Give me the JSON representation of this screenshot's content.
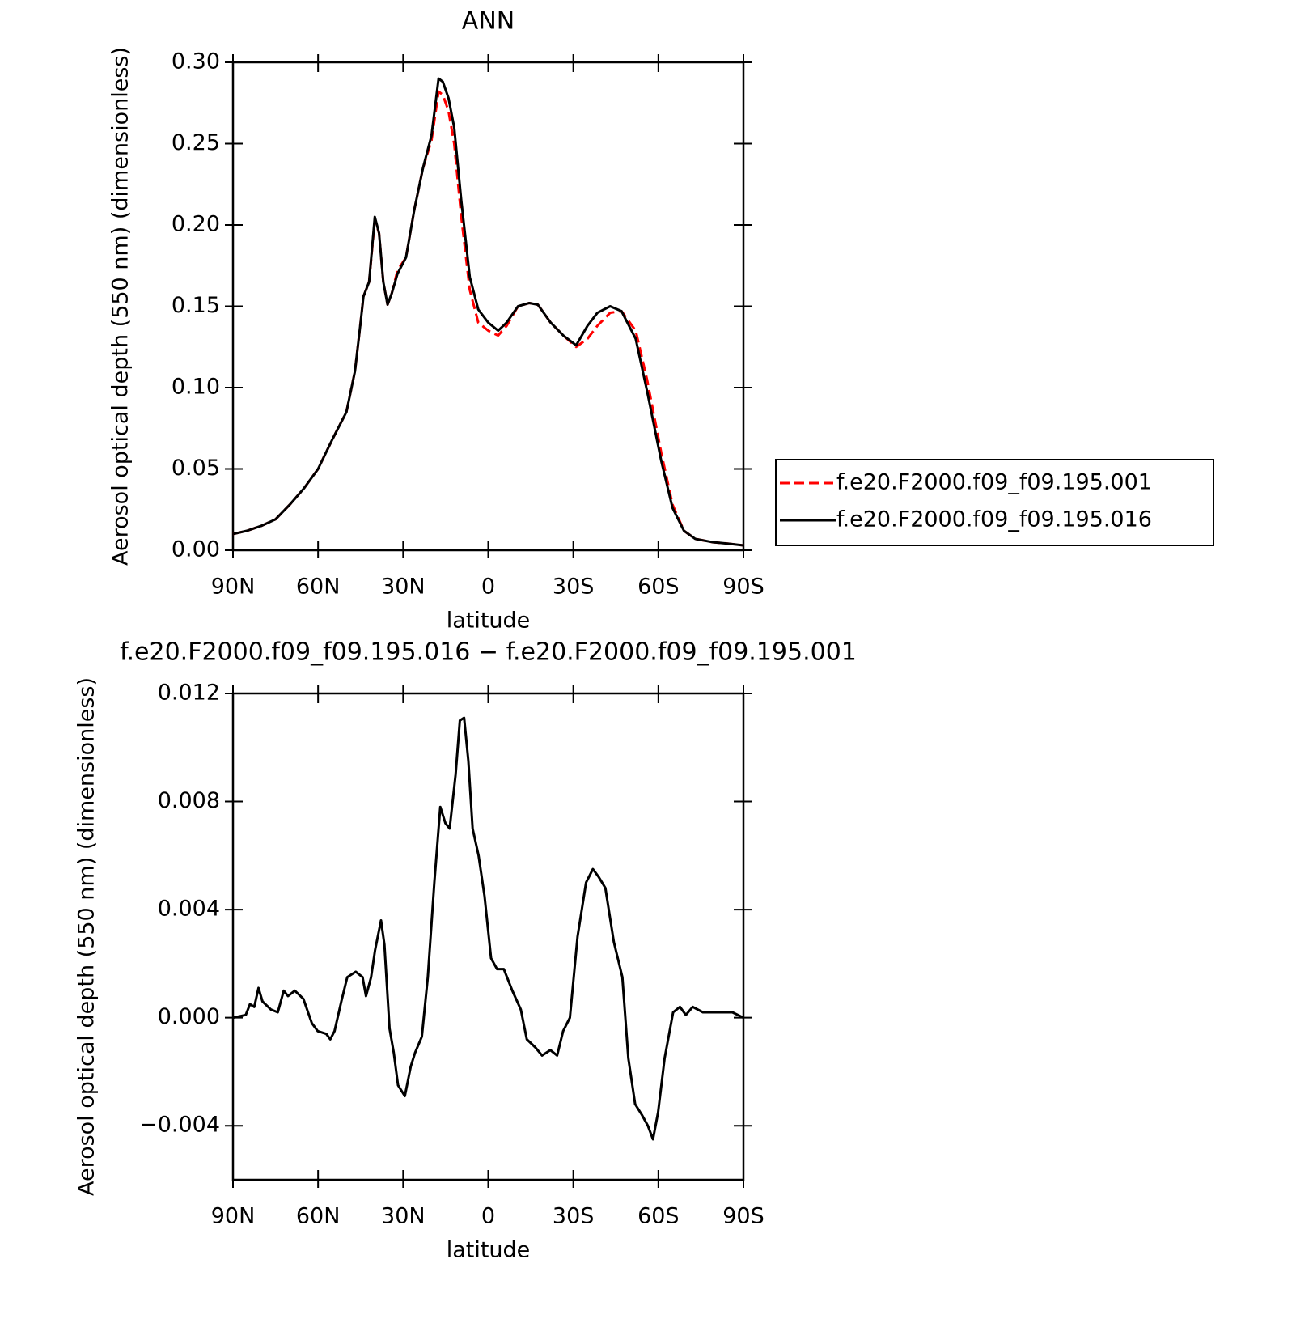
{
  "chart_data": [
    {
      "type": "line",
      "title": "ANN",
      "xlabel": "latitude",
      "ylabel": "Aerosol optical depth (550 nm) (dimensionless)",
      "xlim": [
        90,
        -90
      ],
      "xticks": [
        {
          "value": 90,
          "label": "90N"
        },
        {
          "value": 60,
          "label": "60N"
        },
        {
          "value": 30,
          "label": "30N"
        },
        0,
        {
          "value": -30,
          "label": "30S"
        },
        {
          "value": -60,
          "label": "60S"
        },
        {
          "value": -90,
          "label": "90S"
        }
      ],
      "ylim": [
        0,
        0.3
      ],
      "yticks": [
        {
          "value": 0,
          "label": "0.00"
        },
        0.05,
        {
          "value": 0.1,
          "label": "0.10"
        },
        0.15,
        {
          "value": 0.2,
          "label": "0.20"
        },
        0.25,
        {
          "value": 0.3,
          "label": "0.30"
        }
      ],
      "legend": "right",
      "x": [
        90,
        85,
        80,
        75,
        70,
        65,
        60,
        55,
        50,
        47,
        45,
        44,
        42,
        40,
        38.5,
        37,
        35.5,
        34,
        32,
        29,
        26,
        23,
        20,
        17.5,
        16,
        14,
        12,
        9.5,
        6.5,
        3.5,
        0,
        -3.5,
        -6.5,
        -10.5,
        -14.5,
        -17.5,
        -22,
        -26.5,
        -31,
        -35,
        -38.5,
        -43,
        -47,
        -52,
        -56,
        -61,
        -65,
        -69,
        -73,
        -79,
        -85,
        -90
      ],
      "series": [
        {
          "name": "f.e20.F2000.f09_f09.195.001",
          "color": "#ff0000",
          "dashed": true,
          "values": [
            0.01,
            0.012,
            0.015,
            0.019,
            0.028,
            0.038,
            0.05,
            0.068,
            0.085,
            0.11,
            0.14,
            0.156,
            0.165,
            0.203,
            0.195,
            0.165,
            0.151,
            0.158,
            0.172,
            0.18,
            0.21,
            0.235,
            0.252,
            0.282,
            0.28,
            0.27,
            0.25,
            0.205,
            0.16,
            0.14,
            0.135,
            0.132,
            0.138,
            0.15,
            0.152,
            0.151,
            0.14,
            0.132,
            0.125,
            0.13,
            0.138,
            0.146,
            0.147,
            0.135,
            0.105,
            0.06,
            0.028,
            0.012,
            0.007,
            0.005,
            0.004,
            0.003
          ]
        },
        {
          "name": "f.e20.F2000.f09_f09.195.016",
          "color": "#000000",
          "dashed": false,
          "values": [
            0.01,
            0.012,
            0.015,
            0.019,
            0.028,
            0.038,
            0.05,
            0.068,
            0.085,
            0.11,
            0.14,
            0.156,
            0.165,
            0.205,
            0.195,
            0.165,
            0.151,
            0.158,
            0.17,
            0.18,
            0.21,
            0.235,
            0.255,
            0.29,
            0.288,
            0.278,
            0.26,
            0.215,
            0.168,
            0.148,
            0.14,
            0.135,
            0.14,
            0.15,
            0.152,
            0.151,
            0.14,
            0.132,
            0.126,
            0.138,
            0.146,
            0.15,
            0.147,
            0.13,
            0.098,
            0.055,
            0.026,
            0.012,
            0.007,
            0.005,
            0.004,
            0.003
          ]
        }
      ]
    },
    {
      "type": "line",
      "title": "f.e20.F2000.f09_f09.195.016 − f.e20.F2000.f09_f09.195.001",
      "xlabel": "latitude",
      "ylabel": "Aerosol optical depth (550 nm) (dimensionless)",
      "xlim": [
        90,
        -90
      ],
      "xticks": [
        {
          "value": 90,
          "label": "90N"
        },
        {
          "value": 60,
          "label": "60N"
        },
        {
          "value": 30,
          "label": "30N"
        },
        0,
        {
          "value": -30,
          "label": "30S"
        },
        {
          "value": -60,
          "label": "60S"
        },
        {
          "value": -90,
          "label": "90S"
        }
      ],
      "ylim": [
        -0.006,
        0.012
      ],
      "yticks": [
        {
          "value": -0.004,
          "label": "−0.004"
        },
        {
          "value": 0,
          "label": "0.000"
        },
        0.004,
        0.008,
        0.012
      ],
      "x": [
        90,
        85.5,
        84.0,
        82.5,
        81.0,
        79.6,
        76.6,
        74.2,
        72.1,
        70.6,
        68.2,
        65.2,
        62.2,
        60.1,
        57.1,
        55.7,
        54.2,
        51.8,
        49.7,
        46.7,
        44.3,
        43.1,
        41.3,
        39.9,
        37.8,
        36.6,
        34.8,
        33.3,
        31.8,
        29.4,
        27.3,
        25.8,
        23.4,
        21.3,
        19.0,
        16.9,
        15.1,
        13.6,
        11.5,
        10.0,
        8.5,
        7.0,
        5.5,
        3.4,
        1.3,
        -1.0,
        -3.1,
        -5.5,
        -8.5,
        -11.5,
        -13.6,
        -16.6,
        -19.0,
        -21.9,
        -24.3,
        -26.4,
        -28.8,
        -31.5,
        -34.5,
        -36.9,
        -39.0,
        -41.3,
        -44.3,
        -47.3,
        -49.4,
        -51.8,
        -54.2,
        -56.3,
        -58.1,
        -59.9,
        -62.2,
        -65.2,
        -67.6,
        -69.7,
        -72.1,
        -75.7,
        -81.6,
        -86.1,
        -90
      ],
      "series": [
        {
          "color": "#000000",
          "dashed": false,
          "values": [
            0.0,
            0.0001,
            0.0005,
            0.0004,
            0.0011,
            0.0006,
            0.0003,
            0.0002,
            0.001,
            0.0008,
            0.001,
            0.0007,
            -0.0002,
            -0.0005,
            -0.0006,
            -0.0008,
            -0.0005,
            0.0006,
            0.0015,
            0.0017,
            0.0015,
            0.0008,
            0.0015,
            0.0025,
            0.0036,
            0.0027,
            -0.0004,
            -0.0013,
            -0.0025,
            -0.0029,
            -0.0018,
            -0.0013,
            -0.0007,
            0.0015,
            0.005,
            0.0078,
            0.0072,
            0.007,
            0.009,
            0.011,
            0.0111,
            0.0095,
            0.007,
            0.006,
            0.0045,
            0.0022,
            0.0018,
            0.0018,
            0.001,
            0.0003,
            -0.0008,
            -0.0011,
            -0.0014,
            -0.0012,
            -0.0014,
            -0.0005,
            0.0,
            0.003,
            0.005,
            0.0055,
            0.0052,
            0.0048,
            0.0028,
            0.0015,
            -0.0015,
            -0.0032,
            -0.0036,
            -0.004,
            -0.0045,
            -0.0035,
            -0.0015,
            0.0002,
            0.0004,
            0.0001,
            0.0004,
            0.0002,
            0.0002,
            0.0002,
            0.0
          ]
        }
      ]
    }
  ]
}
